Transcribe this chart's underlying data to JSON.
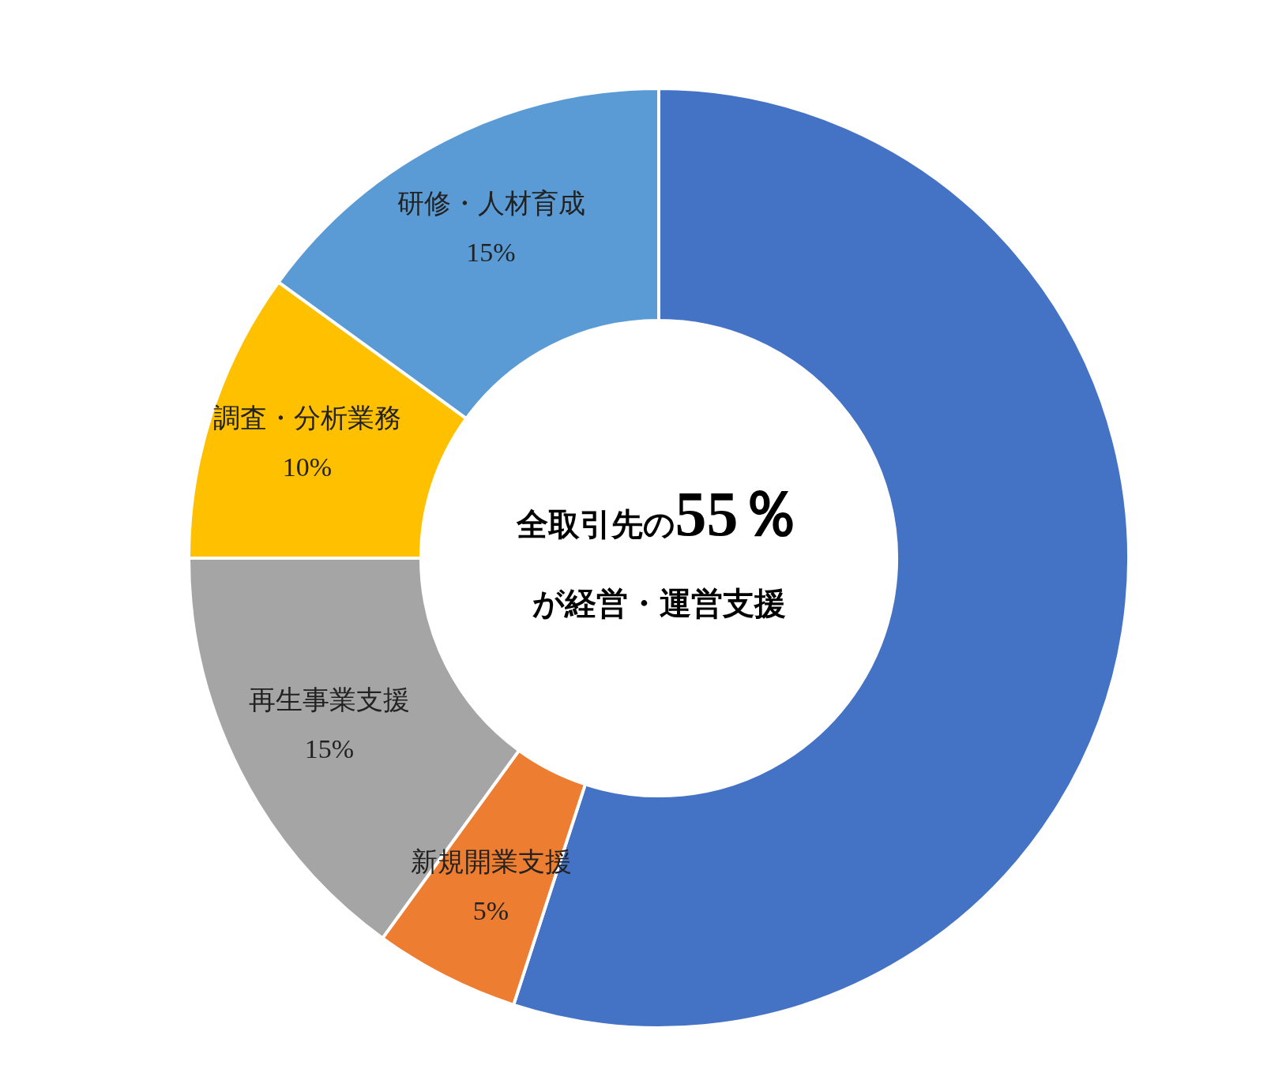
{
  "chart_data": {
    "type": "donut",
    "categories": [
      null,
      "新規開業支援",
      "再生事業支援",
      "調査・分析業務",
      "研修・人材育成"
    ],
    "values": [
      55,
      5,
      15,
      10,
      15
    ],
    "colors": [
      "#4472c4",
      "#ed7d31",
      "#a5a5a5",
      "#ffc000",
      "#5b9bd5"
    ],
    "value_labels": [
      "55％",
      "5%",
      "15%",
      "10%",
      "15%"
    ],
    "legend": false,
    "annotations": [
      "全取引先の",
      "が経営・運営支援"
    ]
  }
}
